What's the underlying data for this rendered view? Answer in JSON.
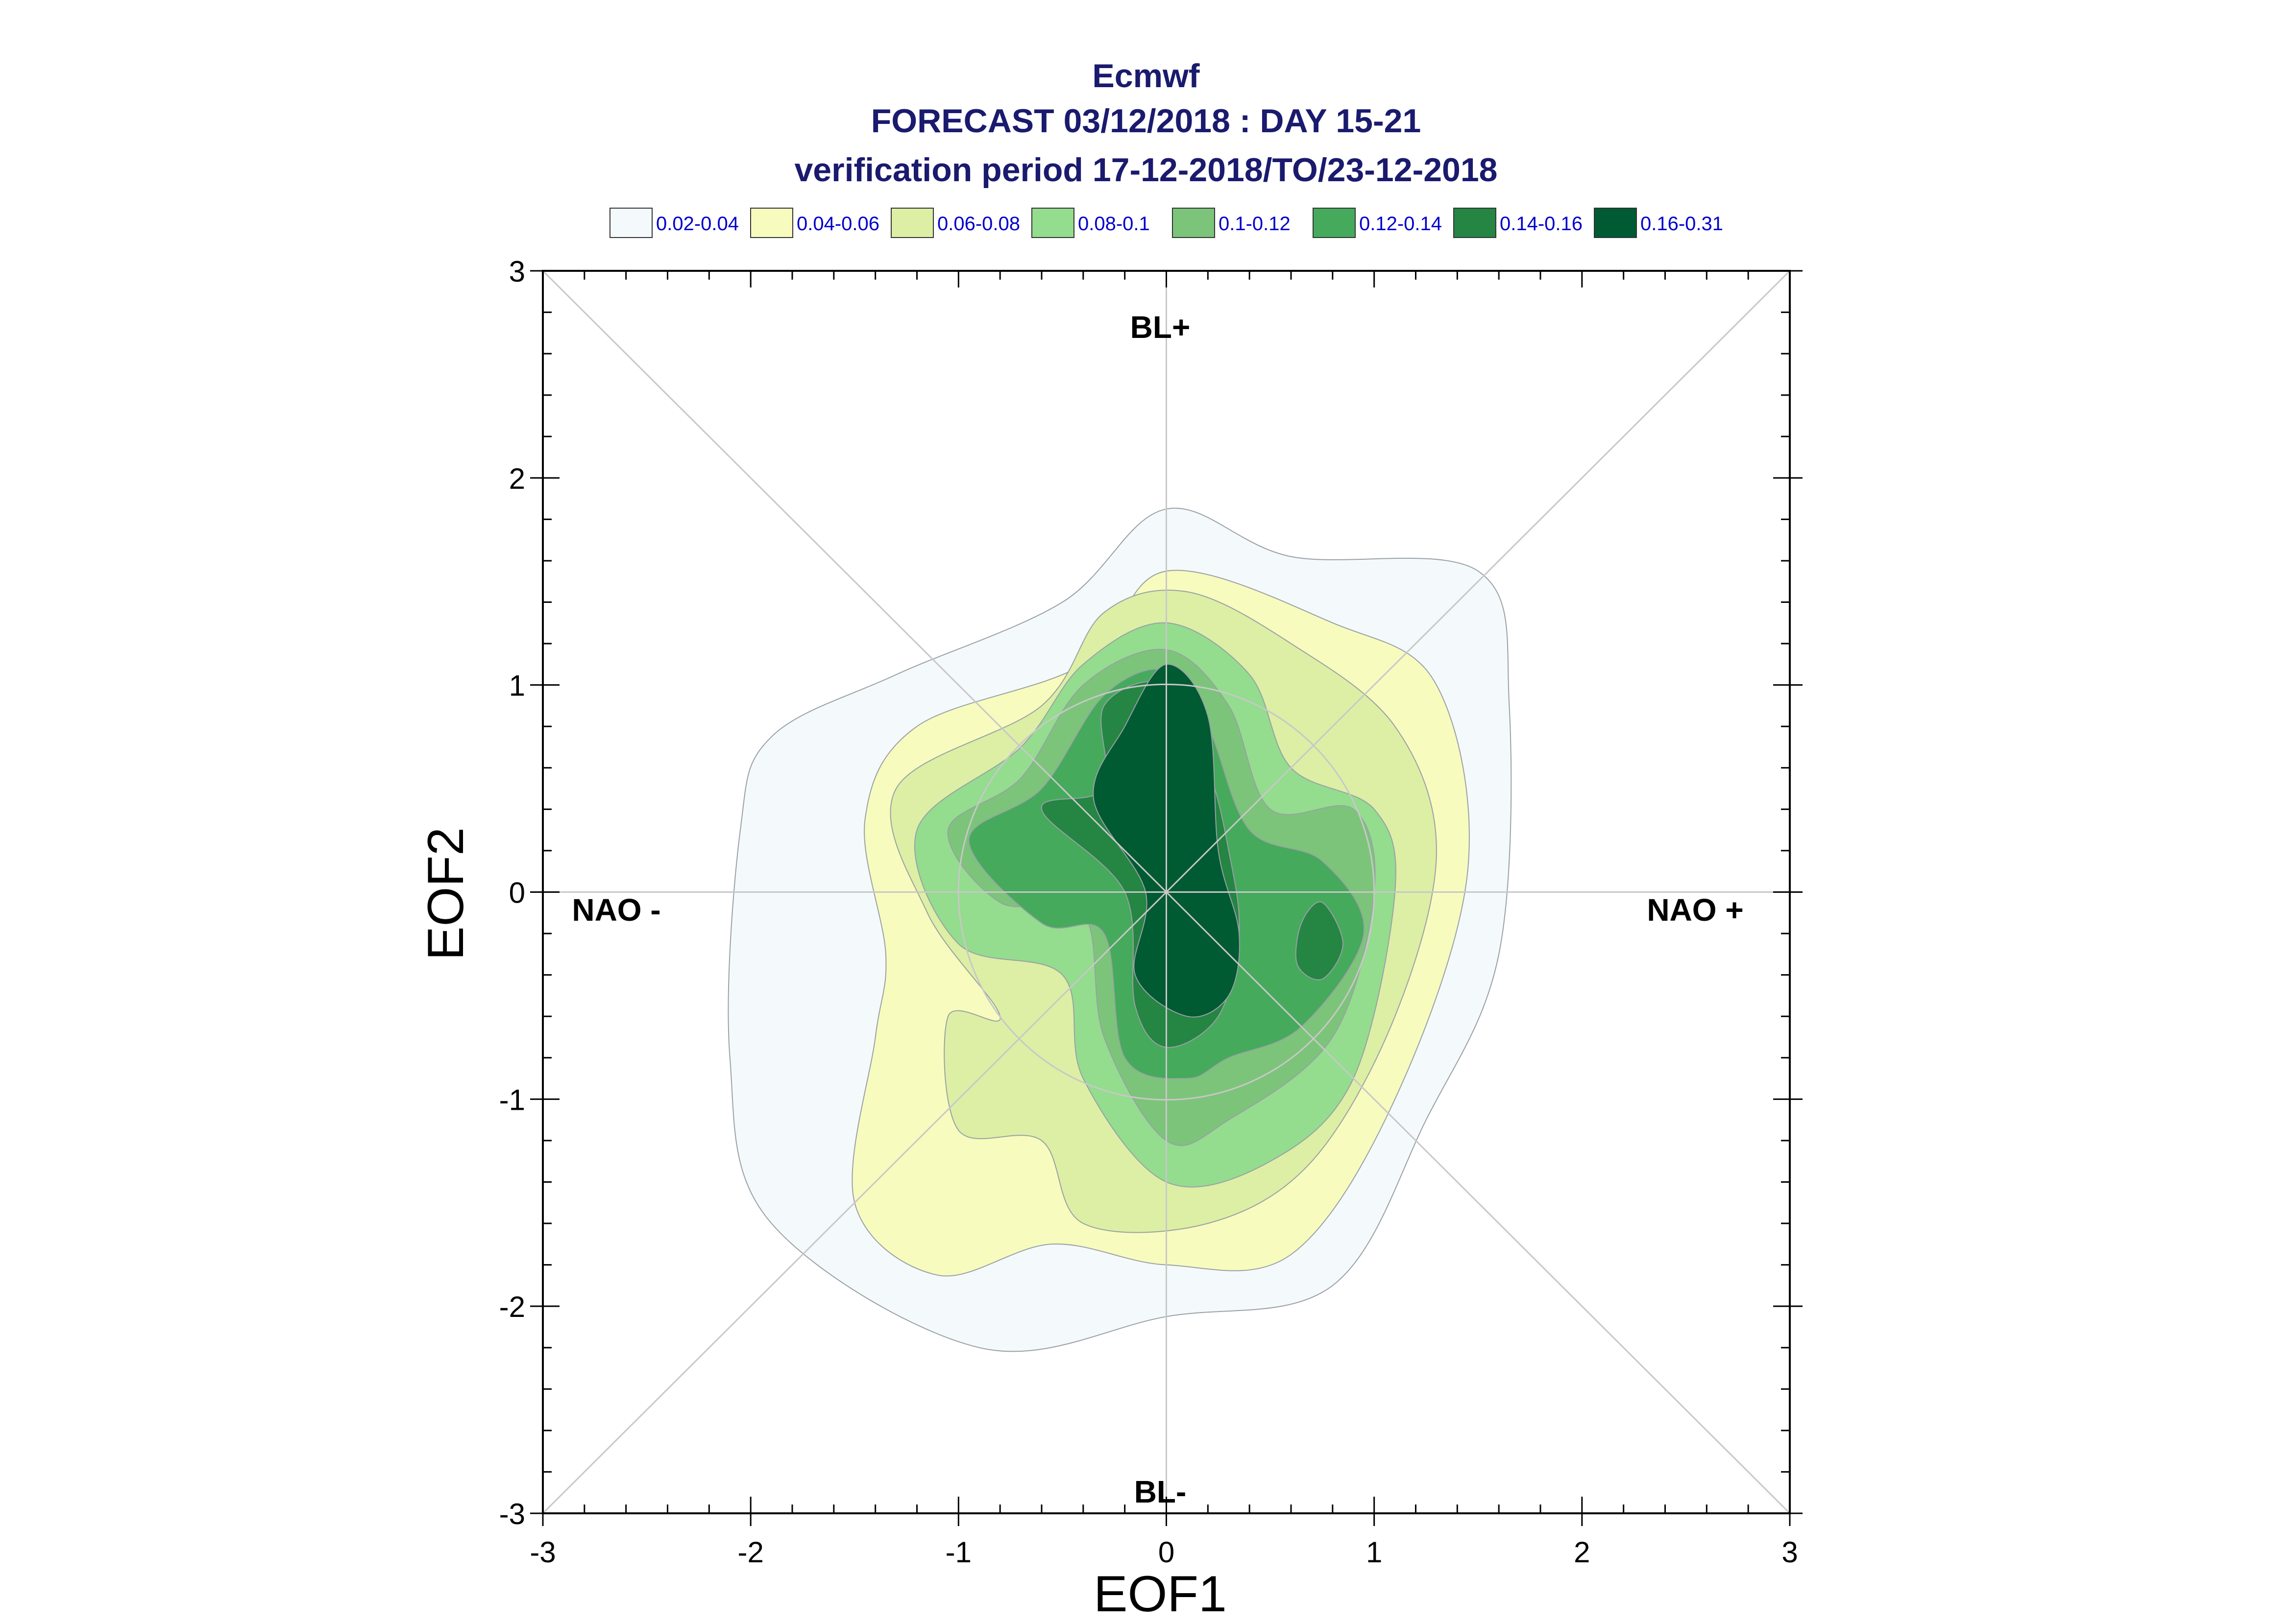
{
  "chart_data": {
    "type": "contour",
    "title_lines": [
      "Ecmwf",
      "FORECAST 03/12/2018 : DAY 15-21",
      "verification period 17-12-2018/TO/23-12-2018"
    ],
    "xlabel": "EOF1",
    "ylabel": "EOF2",
    "xlim": [
      -3,
      3
    ],
    "ylim": [
      -3,
      3
    ],
    "x_ticks": [
      "-3",
      "-2",
      "-1",
      "0",
      "1",
      "2",
      "3"
    ],
    "y_ticks": [
      "-3",
      "-2",
      "-1",
      "0",
      "1",
      "2",
      "3"
    ],
    "regime_labels": {
      "top": "BL+",
      "bottom": "BL-",
      "left": "NAO -",
      "right": "NAO +"
    },
    "legend": [
      {
        "label": "0.02-0.04",
        "color": "#f4f9fb"
      },
      {
        "label": "0.04-0.06",
        "color": "#f7fbbd"
      },
      {
        "label": "0.06-0.08",
        "color": "#dcefa5"
      },
      {
        "label": "0.08-0.1",
        "color": "#94dc8e"
      },
      {
        "label": "0.1-0.12",
        "color": "#7cc47a"
      },
      {
        "label": "0.12-0.14",
        "color": "#46aa5c"
      },
      {
        "label": "0.14-0.16",
        "color": "#258543"
      },
      {
        "label": "0.16-0.31",
        "color": "#005a32"
      }
    ],
    "contours": [
      {
        "level": "0.02-0.04",
        "points": [
          [
            -0.5,
            1.4
          ],
          [
            0.0,
            1.85
          ],
          [
            0.6,
            1.62
          ],
          [
            1.5,
            1.55
          ],
          [
            1.65,
            0.9
          ],
          [
            1.6,
            -0.3
          ],
          [
            1.25,
            -1.1
          ],
          [
            0.8,
            -1.9
          ],
          [
            0.0,
            -2.05
          ],
          [
            -0.9,
            -2.2
          ],
          [
            -1.9,
            -1.6
          ],
          [
            -2.1,
            -0.8
          ],
          [
            -2.05,
            0.3
          ],
          [
            -1.9,
            0.75
          ],
          [
            -1.3,
            1.05
          ]
        ]
      },
      {
        "level": "0.04-0.06",
        "points": [
          [
            -0.4,
            1.1
          ],
          [
            0.0,
            1.55
          ],
          [
            0.8,
            1.3
          ],
          [
            1.3,
            1.0
          ],
          [
            1.45,
            0.1
          ],
          [
            1.1,
            -1.0
          ],
          [
            0.6,
            -1.75
          ],
          [
            0.0,
            -1.8
          ],
          [
            -0.55,
            -1.7
          ],
          [
            -1.1,
            -1.85
          ],
          [
            -1.5,
            -1.5
          ],
          [
            -1.4,
            -0.7
          ],
          [
            -1.35,
            -0.3
          ],
          [
            -1.45,
            0.35
          ],
          [
            -1.2,
            0.8
          ]
        ]
      },
      {
        "level": "0.06-0.08",
        "points": [
          [
            -0.6,
            0.9
          ],
          [
            -0.3,
            1.35
          ],
          [
            0.1,
            1.45
          ],
          [
            0.6,
            1.2
          ],
          [
            1.1,
            0.8
          ],
          [
            1.3,
            0.2
          ],
          [
            1.1,
            -0.6
          ],
          [
            0.7,
            -1.3
          ],
          [
            0.2,
            -1.6
          ],
          [
            -0.4,
            -1.6
          ],
          [
            -0.6,
            -1.2
          ],
          [
            -1.0,
            -1.15
          ],
          [
            -1.05,
            -0.6
          ],
          [
            -0.8,
            -0.6
          ],
          [
            -1.15,
            -0.1
          ],
          [
            -1.3,
            0.5
          ]
        ]
      },
      {
        "level": "0.08-0.1",
        "points": [
          [
            -0.7,
            0.7
          ],
          [
            -0.4,
            1.1
          ],
          [
            0.0,
            1.3
          ],
          [
            0.4,
            1.05
          ],
          [
            0.6,
            0.6
          ],
          [
            1.0,
            0.4
          ],
          [
            1.1,
            0.0
          ],
          [
            0.9,
            -0.9
          ],
          [
            0.5,
            -1.3
          ],
          [
            0.0,
            -1.4
          ],
          [
            -0.4,
            -0.9
          ],
          [
            -0.5,
            -0.4
          ],
          [
            -1.0,
            -0.25
          ],
          [
            -1.2,
            0.3
          ]
        ]
      },
      {
        "level": "0.1-0.12",
        "points": [
          [
            -0.7,
            0.55
          ],
          [
            -0.4,
            1.0
          ],
          [
            0.0,
            1.17
          ],
          [
            0.3,
            0.9
          ],
          [
            0.5,
            0.4
          ],
          [
            0.9,
            0.4
          ],
          [
            1.0,
            0.0
          ],
          [
            0.8,
            -0.7
          ],
          [
            0.3,
            -1.1
          ],
          [
            0.0,
            -1.2
          ],
          [
            -0.3,
            -0.7
          ],
          [
            -0.4,
            -0.1
          ],
          [
            -0.8,
            -0.05
          ],
          [
            -1.05,
            0.3
          ]
        ]
      },
      {
        "level": "0.12-0.14",
        "points": [
          [
            -0.6,
            0.5
          ],
          [
            -0.3,
            0.95
          ],
          [
            0.0,
            1.07
          ],
          [
            0.2,
            0.8
          ],
          [
            0.4,
            0.3
          ],
          [
            0.75,
            0.15
          ],
          [
            0.95,
            -0.2
          ],
          [
            0.65,
            -0.65
          ],
          [
            0.3,
            -0.8
          ],
          [
            0.1,
            -0.9
          ],
          [
            -0.2,
            -0.8
          ],
          [
            -0.3,
            -0.2
          ],
          [
            -0.6,
            -0.15
          ],
          [
            -0.95,
            0.25
          ]
        ]
      },
      {
        "level": "0.14-0.16",
        "points": [
          [
            -0.3,
            0.5
          ],
          [
            -0.3,
            0.9
          ],
          [
            0.0,
            1.0
          ],
          [
            0.2,
            0.6
          ],
          [
            0.3,
            0.2
          ],
          [
            0.35,
            -0.2
          ],
          [
            0.25,
            -0.6
          ],
          [
            0.0,
            -0.75
          ],
          [
            -0.15,
            -0.55
          ],
          [
            -0.2,
            0.0
          ],
          [
            -0.6,
            0.4
          ]
        ]
      },
      {
        "level": "0.14-0.16",
        "points": [
          [
            0.75,
            -0.05
          ],
          [
            0.85,
            -0.25
          ],
          [
            0.75,
            -0.42
          ],
          [
            0.63,
            -0.35
          ],
          [
            0.65,
            -0.15
          ]
        ]
      },
      {
        "level": "0.16-0.31",
        "points": [
          [
            -0.2,
            0.8
          ],
          [
            0.0,
            1.1
          ],
          [
            0.2,
            0.85
          ],
          [
            0.25,
            0.2
          ],
          [
            0.35,
            -0.2
          ],
          [
            0.3,
            -0.5
          ],
          [
            0.1,
            -0.6
          ],
          [
            -0.15,
            -0.4
          ],
          [
            -0.1,
            0.0
          ],
          [
            -0.35,
            0.45
          ]
        ]
      }
    ]
  }
}
